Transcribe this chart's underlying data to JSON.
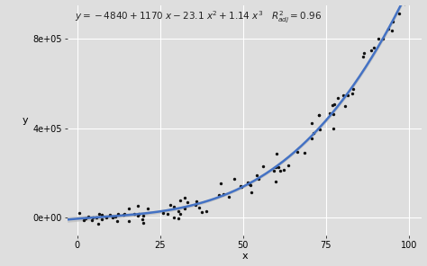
{
  "title": "",
  "xlabel": "x",
  "ylabel": "y",
  "coefficients": [
    -4840,
    1170,
    -23.1,
    1.14
  ],
  "n_points": 100,
  "xlim": [
    -3,
    104
  ],
  "ylim": [
    -80000,
    950000
  ],
  "bg_color": "#DEDEDE",
  "grid_color": "#FFFFFF",
  "line_color": "#4472C4",
  "ci_color": "#BBBBBB",
  "point_color": "#111111",
  "point_size": 6,
  "yticks": [
    0,
    400000,
    800000
  ],
  "ytick_labels": [
    "0e+00",
    "4e+05",
    "8e+05"
  ],
  "xticks": [
    0,
    25,
    50,
    75,
    100
  ],
  "annotation_fontsize": 7.5,
  "axis_fontsize": 8,
  "tick_fontsize": 7
}
